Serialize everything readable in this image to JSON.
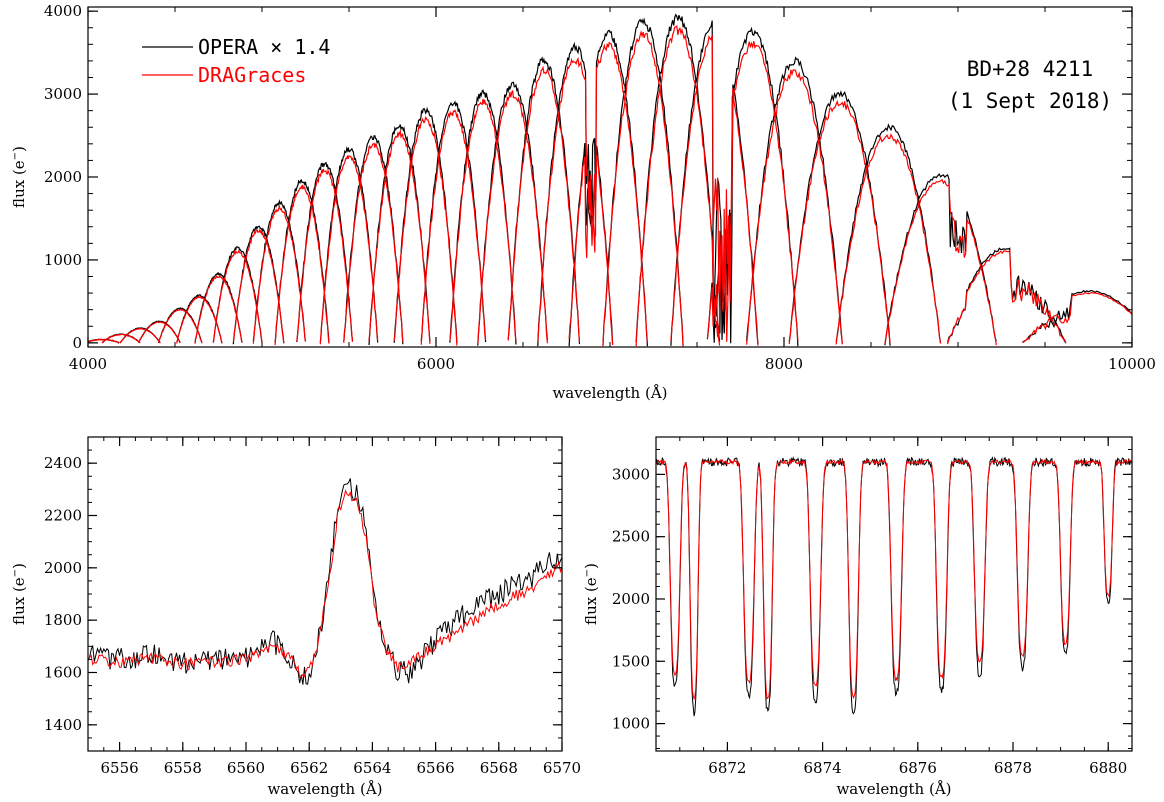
{
  "chart_data": [
    {
      "id": "top",
      "type": "line",
      "xlabel": "wavelength (Å)",
      "ylabel_main": "flux (e",
      "ylabel_sup": "−",
      "ylabel_close": ")",
      "xlim": [
        4000,
        10000
      ],
      "ylim": [
        -50,
        4050
      ],
      "xticks": [
        4000,
        6000,
        8000,
        10000
      ],
      "yticks": [
        0,
        1000,
        2000,
        3000,
        4000
      ],
      "x_minor_step": 500,
      "y_minor_step": 200,
      "grid": false,
      "legend": {
        "placement": "top-left",
        "entries": [
          {
            "name": "OPERA × 1.4",
            "color": "#000000"
          },
          {
            "name": "DRAGraces",
            "color": "#ff0000"
          }
        ]
      },
      "annotation": [
        "BD+28 4211",
        "(1 Sept 2018)"
      ],
      "series": [
        {
          "name": "OPERA × 1.4",
          "color": "#000000",
          "scale": 1.04
        },
        {
          "name": "DRAGraces",
          "color": "#ff0000",
          "scale": 1.0
        }
      ],
      "orders": [
        {
          "center": 4080,
          "width": 100,
          "peak": 40
        },
        {
          "center": 4190,
          "width": 110,
          "peak": 100
        },
        {
          "center": 4300,
          "width": 115,
          "peak": 170
        },
        {
          "center": 4410,
          "width": 120,
          "peak": 250
        },
        {
          "center": 4530,
          "width": 125,
          "peak": 400
        },
        {
          "center": 4640,
          "width": 130,
          "peak": 550
        },
        {
          "center": 4750,
          "width": 135,
          "peak": 800
        },
        {
          "center": 4860,
          "width": 140,
          "peak": 1100
        },
        {
          "center": 4980,
          "width": 145,
          "peak": 1350
        },
        {
          "center": 5100,
          "width": 150,
          "peak": 1620
        },
        {
          "center": 5230,
          "width": 155,
          "peak": 1880
        },
        {
          "center": 5360,
          "width": 160,
          "peak": 2080
        },
        {
          "center": 5500,
          "width": 165,
          "peak": 2250
        },
        {
          "center": 5640,
          "width": 170,
          "peak": 2380
        },
        {
          "center": 5790,
          "width": 175,
          "peak": 2520
        },
        {
          "center": 5940,
          "width": 180,
          "peak": 2700
        },
        {
          "center": 6100,
          "width": 185,
          "peak": 2780
        },
        {
          "center": 6270,
          "width": 190,
          "peak": 2900
        },
        {
          "center": 6440,
          "width": 200,
          "peak": 3000
        },
        {
          "center": 6620,
          "width": 205,
          "peak": 3280
        },
        {
          "center": 6800,
          "width": 215,
          "peak": 3420
        },
        {
          "center": 6990,
          "width": 225,
          "peak": 3580
        },
        {
          "center": 7190,
          "width": 230,
          "peak": 3720
        },
        {
          "center": 7390,
          "width": 240,
          "peak": 3770
        },
        {
          "center": 7600,
          "width": 250,
          "peak": 3700
        },
        {
          "center": 7820,
          "width": 260,
          "peak": 3600
        },
        {
          "center": 8060,
          "width": 275,
          "peak": 3270
        },
        {
          "center": 8320,
          "width": 290,
          "peak": 2900
        },
        {
          "center": 8600,
          "width": 300,
          "peak": 2500
        },
        {
          "center": 8900,
          "width": 320,
          "peak": 1950
        },
        {
          "center": 9280,
          "width": 340,
          "peak": 1100
        },
        {
          "center": 9750,
          "width": 380,
          "peak": 600
        }
      ],
      "telluric_bands": [
        {
          "from": 6860,
          "to": 6920,
          "depth": 0.6
        },
        {
          "from": 7590,
          "to": 7700,
          "depth": 1.0
        },
        {
          "from": 8950,
          "to": 9050,
          "depth": 0.4
        },
        {
          "from": 9300,
          "to": 9650,
          "depth": 0.55
        }
      ]
    },
    {
      "id": "bottom-left",
      "type": "line",
      "xlabel": "wavelength (Å)",
      "ylabel_main": "flux (e",
      "ylabel_sup": "−",
      "ylabel_close": ")",
      "xlim": [
        6555,
        6570
      ],
      "ylim": [
        1300,
        2500
      ],
      "xticks": [
        6556,
        6558,
        6560,
        6562,
        6564,
        6566,
        6568,
        6570
      ],
      "yticks": [
        1400,
        1600,
        1800,
        2000,
        2200,
        2400
      ],
      "x_minor_step": 0.5,
      "y_minor_step": 50,
      "grid": false,
      "series": [
        {
          "name": "OPERA × 1.4",
          "color": "#000000",
          "x": [
            6555.0,
            6556.0,
            6557.0,
            6558.0,
            6559.0,
            6560.0,
            6560.8,
            6561.3,
            6561.8,
            6562.2,
            6562.6,
            6562.9,
            6563.2,
            6563.5,
            6563.8,
            6564.1,
            6564.4,
            6564.8,
            6565.2,
            6566.0,
            6567.0,
            6568.0,
            6569.0,
            6570.0
          ],
          "y": [
            1660,
            1650,
            1670,
            1640,
            1650,
            1660,
            1720,
            1680,
            1570,
            1650,
            1950,
            2250,
            2330,
            2290,
            2150,
            1850,
            1700,
            1600,
            1600,
            1720,
            1830,
            1900,
            1960,
            2050
          ]
        },
        {
          "name": "DRAGraces",
          "color": "#ff0000",
          "x": [
            6555.0,
            6556.0,
            6557.0,
            6558.0,
            6559.0,
            6560.0,
            6560.8,
            6561.3,
            6561.8,
            6562.2,
            6562.6,
            6562.9,
            6563.2,
            6563.5,
            6563.8,
            6564.1,
            6564.4,
            6564.8,
            6565.2,
            6566.0,
            6567.0,
            6568.0,
            6569.0,
            6570.0
          ],
          "y": [
            1650,
            1640,
            1655,
            1630,
            1640,
            1650,
            1700,
            1670,
            1580,
            1660,
            1930,
            2200,
            2290,
            2260,
            2120,
            1830,
            1700,
            1620,
            1640,
            1700,
            1780,
            1860,
            1920,
            2010
          ]
        }
      ]
    },
    {
      "id": "bottom-right",
      "type": "line",
      "xlabel": "wavelength (Å)",
      "ylabel_main": "flux (e",
      "ylabel_sup": "−",
      "ylabel_close": ")",
      "xlim": [
        6870.5,
        6880.5
      ],
      "ylim": [
        780,
        3300
      ],
      "xticks": [
        6872,
        6874,
        6876,
        6878,
        6880
      ],
      "yticks": [
        1000,
        1500,
        2000,
        2500,
        3000
      ],
      "x_minor_step": 0.5,
      "y_minor_step": 100,
      "grid": false,
      "continuum": 3100,
      "lines": [
        {
          "center": 6870.9,
          "depth": 1750,
          "width": 0.12
        },
        {
          "center": 6871.3,
          "depth": 1950,
          "width": 0.1
        },
        {
          "center": 6872.45,
          "depth": 1820,
          "width": 0.13
        },
        {
          "center": 6872.85,
          "depth": 1950,
          "width": 0.11
        },
        {
          "center": 6873.85,
          "depth": 1850,
          "width": 0.13
        },
        {
          "center": 6874.65,
          "depth": 1950,
          "width": 0.12
        },
        {
          "center": 6875.55,
          "depth": 1800,
          "width": 0.13
        },
        {
          "center": 6876.5,
          "depth": 1780,
          "width": 0.13
        },
        {
          "center": 6877.3,
          "depth": 1650,
          "width": 0.13
        },
        {
          "center": 6878.2,
          "depth": 1600,
          "width": 0.13
        },
        {
          "center": 6879.1,
          "depth": 1500,
          "width": 0.12
        },
        {
          "center": 6880.0,
          "depth": 1100,
          "width": 0.1
        }
      ],
      "series": [
        {
          "name": "OPERA × 1.4",
          "color": "#000000"
        },
        {
          "name": "DRAGraces",
          "color": "#ff0000"
        }
      ]
    }
  ]
}
